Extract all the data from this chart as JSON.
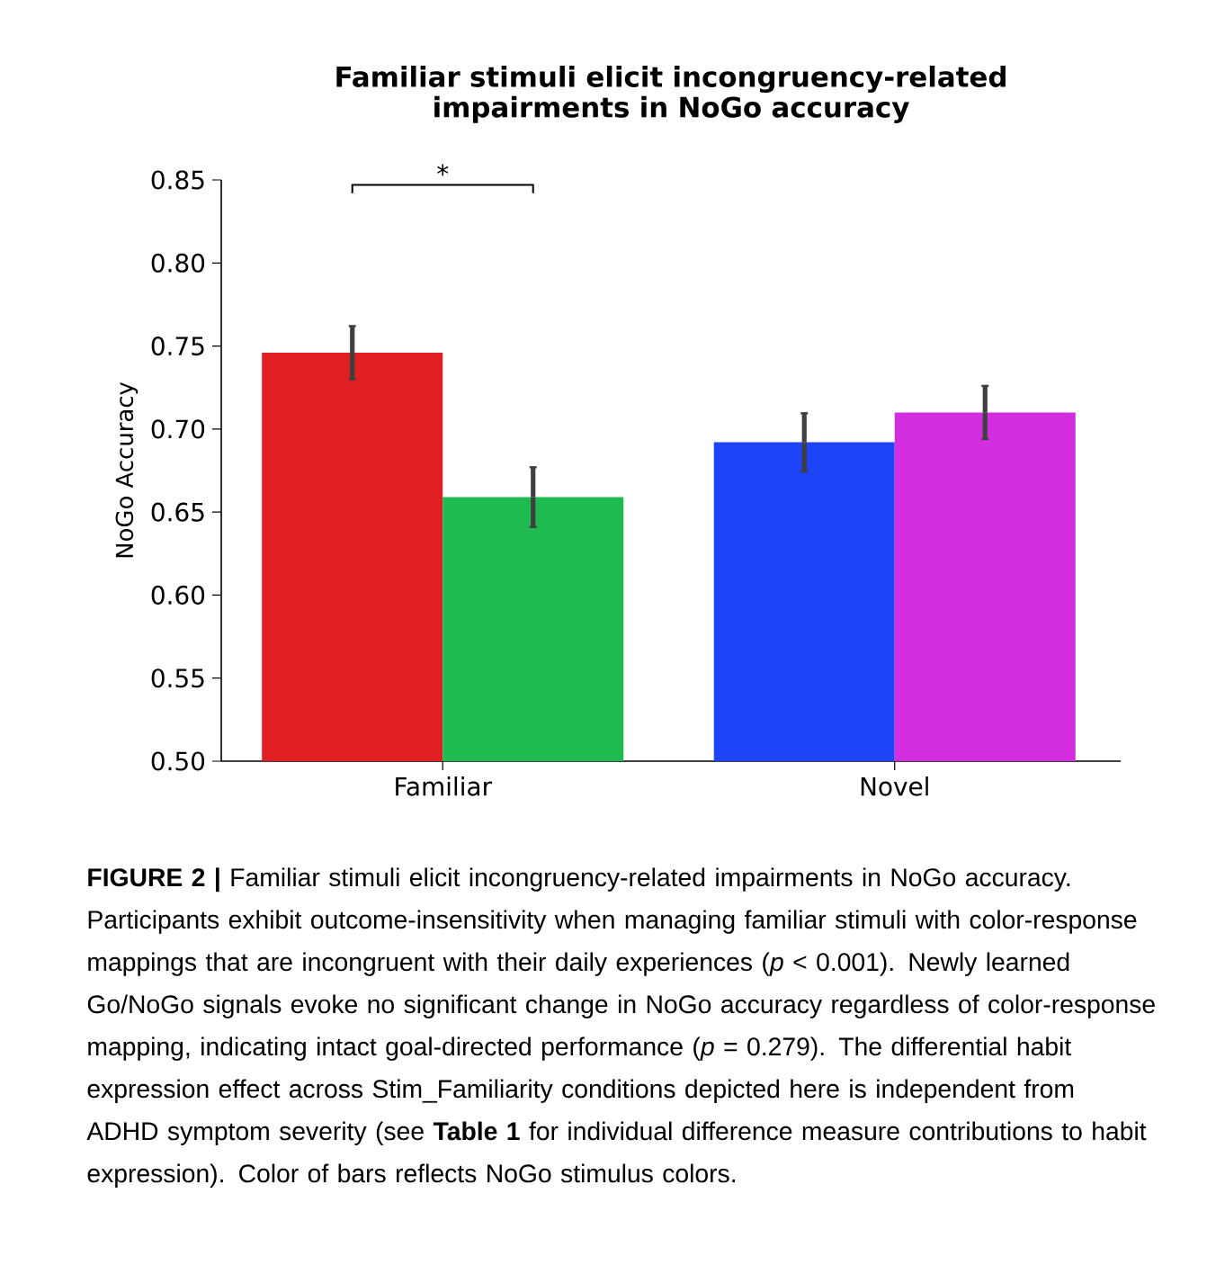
{
  "chart_data": {
    "type": "bar",
    "title": "Familiar stimuli elicit incongruency-related impairments in NoGo accuracy",
    "ylabel": "NoGo Accuracy",
    "categories": [
      "Familiar",
      "Novel"
    ],
    "series": [
      {
        "colors": [
          "#df1f21",
          "#1d45f7"
        ],
        "values": [
          0.746,
          0.692
        ],
        "errors": [
          0.016,
          0.0175
        ]
      },
      {
        "colors": [
          "#20bb50",
          "#d22ee0"
        ],
        "values": [
          0.659,
          0.71
        ],
        "errors": [
          0.018,
          0.016
        ]
      }
    ],
    "ylim": [
      0.5,
      0.85
    ],
    "yticks": [
      {
        "value": 0.5,
        "label": "0.50"
      },
      {
        "value": 0.55,
        "label": "0.55"
      },
      {
        "value": 0.6,
        "label": "0.60"
      },
      {
        "value": 0.65,
        "label": "0.65"
      },
      {
        "value": 0.7,
        "label": "0.70"
      },
      {
        "value": 0.75,
        "label": "0.75"
      },
      {
        "value": 0.8,
        "label": "0.80"
      },
      {
        "value": 0.85,
        "label": "0.85"
      }
    ],
    "grid": false,
    "annotations": [
      "*",
      "**FIGURE 2 |** Familiar stimuli elicit incongruency-related impairments in NoGo accuracy. Participants exhibit outcome-insensitivity when managing familiar stimuli with color-response mappings that are incongruent with their daily experiences (*p* < 0.001). Newly learned Go/NoGo signals evoke no significant change in NoGo accuracy regardless of color-response mapping, indicating intact goal-directed performance (*p* = 0.279). The differential habit expression effect across Stim_Familiarity conditions depicted here is independent from ADHD symptom severity (see **Table 1** for individual difference measure contributions to habit expression). Color of bars reflects NoGo stimulus colors."
    ]
  }
}
